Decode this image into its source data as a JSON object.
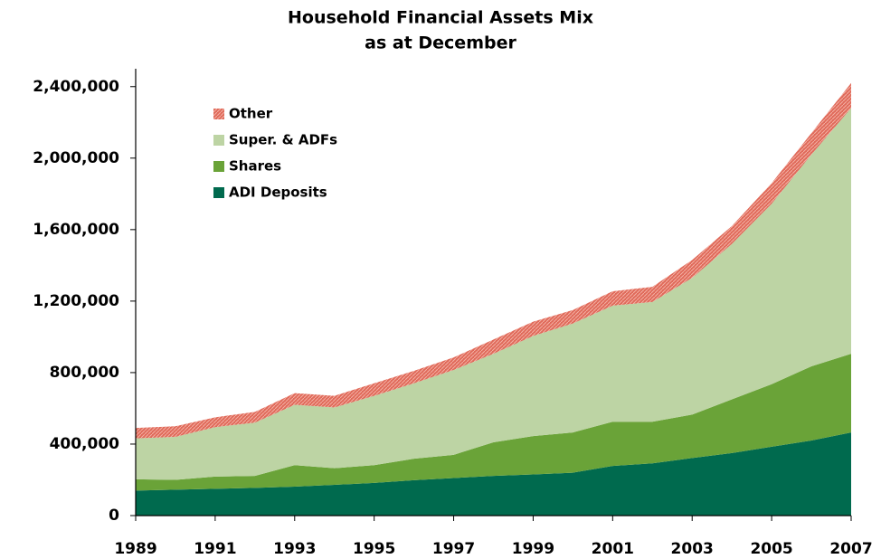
{
  "chart_data": {
    "type": "stacked_area",
    "title": "Household Financial Assets Mix",
    "subtitle": "as at December",
    "x": [
      1989,
      1990,
      1991,
      1992,
      1993,
      1994,
      1995,
      1996,
      1997,
      1998,
      1999,
      2000,
      2001,
      2002,
      2003,
      2004,
      2005,
      2006,
      2007
    ],
    "series": [
      {
        "name": "ADI Deposits",
        "color": "#006a4e",
        "values": [
          140000,
          145000,
          150000,
          155000,
          162000,
          172000,
          183000,
          198000,
          210000,
          222000,
          230000,
          240000,
          278000,
          292000,
          322000,
          350000,
          385000,
          420000,
          465000
        ]
      },
      {
        "name": "Shares",
        "color": "#6aa338",
        "values": [
          63000,
          55000,
          68000,
          67000,
          120000,
          93000,
          99000,
          120000,
          130000,
          188000,
          215000,
          225000,
          247000,
          233000,
          243000,
          300000,
          350000,
          415000,
          440000
        ]
      },
      {
        "name": "Super. & ADFs",
        "color": "#bdd4a4",
        "values": [
          229000,
          240000,
          277000,
          298000,
          338000,
          340000,
          388000,
          422000,
          475000,
          495000,
          560000,
          610000,
          650000,
          670000,
          765000,
          870000,
          1010000,
          1185000,
          1375000
        ]
      },
      {
        "name": "Other",
        "color": "#e06a5a",
        "values": [
          58000,
          60000,
          55000,
          60000,
          65000,
          65000,
          70000,
          70000,
          70000,
          80000,
          80000,
          75000,
          80000,
          85000,
          100000,
          100000,
          115000,
          120000,
          140000
        ]
      }
    ],
    "xlim": [
      1989,
      2007
    ],
    "xticks": [
      1989,
      1991,
      1993,
      1995,
      1997,
      1999,
      2001,
      2003,
      2005,
      2007
    ],
    "ylim": [
      0,
      2500000
    ],
    "yticks": [
      0,
      {
        "value": 400000,
        "label": "400,000"
      },
      {
        "value": 800000,
        "label": "800,000"
      },
      {
        "value": 1200000,
        "label": "1,200,000"
      },
      {
        "value": 1600000,
        "label": "1,600,000"
      },
      {
        "value": 2000000,
        "label": "2,000,000"
      },
      {
        "value": 2400000,
        "label": "2,400,000"
      }
    ],
    "legend": "top-left"
  }
}
